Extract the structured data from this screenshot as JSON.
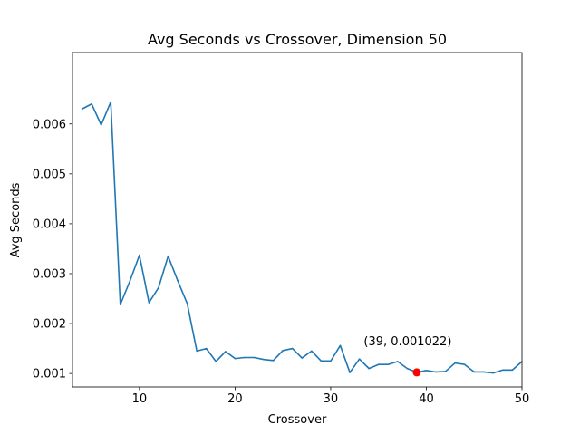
{
  "chart_data": {
    "type": "line",
    "title": "Avg Seconds vs Crossover, Dimension 50",
    "xlabel": "Crossover",
    "ylabel": "Avg Seconds",
    "xlim": [
      3,
      50
    ],
    "ylim": [
      0.00073,
      0.00743
    ],
    "x_ticks": [
      10,
      20,
      30,
      40,
      50
    ],
    "x_tick_labels": [
      "10",
      "20",
      "30",
      "40",
      "50"
    ],
    "y_ticks": [
      0.001,
      0.002,
      0.003,
      0.004,
      0.005,
      0.006
    ],
    "y_tick_labels": [
      "0.001",
      "0.002",
      "0.003",
      "0.004",
      "0.005",
      "0.006"
    ],
    "grid": false,
    "series": [
      {
        "color": "#1f77b4",
        "x": [
          4,
          5,
          6,
          7,
          8,
          9,
          10,
          11,
          12,
          13,
          14,
          15,
          16,
          17,
          18,
          19,
          20,
          21,
          22,
          23,
          24,
          25,
          26,
          27,
          28,
          29,
          30,
          31,
          32,
          33,
          34,
          35,
          36,
          37,
          38,
          39,
          40,
          41,
          42,
          43,
          44,
          45,
          46,
          47,
          48,
          49,
          50
        ],
        "y": [
          0.0063,
          0.0064,
          0.00598,
          0.00644,
          0.00238,
          0.00285,
          0.00337,
          0.00242,
          0.00272,
          0.00335,
          0.00286,
          0.0024,
          0.00145,
          0.0015,
          0.00124,
          0.00144,
          0.0013,
          0.00132,
          0.00132,
          0.00128,
          0.00126,
          0.00146,
          0.0015,
          0.00131,
          0.00145,
          0.00125,
          0.00125,
          0.00156,
          0.00102,
          0.00129,
          0.0011,
          0.00118,
          0.00118,
          0.00124,
          0.0011,
          0.001022,
          0.00106,
          0.00103,
          0.00104,
          0.00121,
          0.00118,
          0.00103,
          0.00103,
          0.00101,
          0.00107,
          0.00107,
          0.00124
        ]
      }
    ],
    "highlight": {
      "x": 39,
      "y": 0.001022,
      "color": "#ff0000",
      "label": "(39, 0.001022)"
    }
  }
}
